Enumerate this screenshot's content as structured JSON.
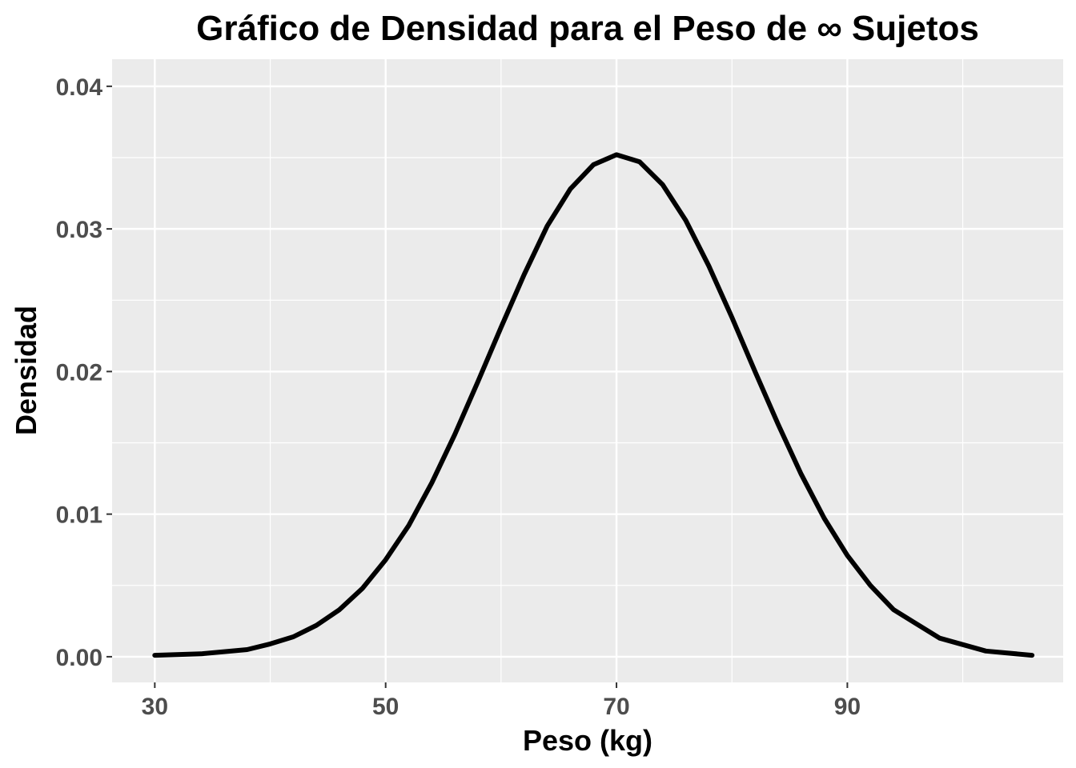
{
  "chart_data": {
    "type": "line",
    "title": "Gráfico de Densidad para el Peso de ∞ Sujetos",
    "xlabel": "Peso (kg)",
    "ylabel": "Densidad",
    "xlim": [
      26.3,
      108.7
    ],
    "ylim": [
      -0.0018,
      0.0419
    ],
    "x_ticks": [
      30,
      50,
      70,
      90
    ],
    "x_tick_labels": [
      "30",
      "50",
      "70",
      "90"
    ],
    "y_ticks": [
      0.0,
      0.01,
      0.02,
      0.03,
      0.04
    ],
    "y_tick_labels": [
      "0.00",
      "0.01",
      "0.02",
      "0.03",
      "0.04"
    ],
    "grid": true,
    "legend": "none",
    "series": [
      {
        "x": [
          30,
          34,
          38,
          40,
          42,
          44,
          46,
          48,
          50,
          52,
          54,
          56,
          58,
          60,
          62,
          64,
          66,
          68,
          70,
          72,
          74,
          76,
          78,
          80,
          82,
          84,
          86,
          88,
          90,
          92,
          94,
          98,
          102,
          106
        ],
        "values": [
          0.0001,
          0.0002,
          0.0005,
          0.0009,
          0.0014,
          0.0022,
          0.0033,
          0.0048,
          0.0068,
          0.0092,
          0.0122,
          0.0156,
          0.0193,
          0.0231,
          0.0268,
          0.0302,
          0.0328,
          0.0345,
          0.0352,
          0.0347,
          0.0331,
          0.0306,
          0.0274,
          0.0238,
          0.02,
          0.0163,
          0.0128,
          0.0097,
          0.0071,
          0.005,
          0.0033,
          0.0013,
          0.0004,
          0.0001
        ],
        "color": "#000000"
      }
    ]
  },
  "colors": {
    "panel": "#ebebeb",
    "grid": "#ffffff",
    "line": "#000000"
  }
}
